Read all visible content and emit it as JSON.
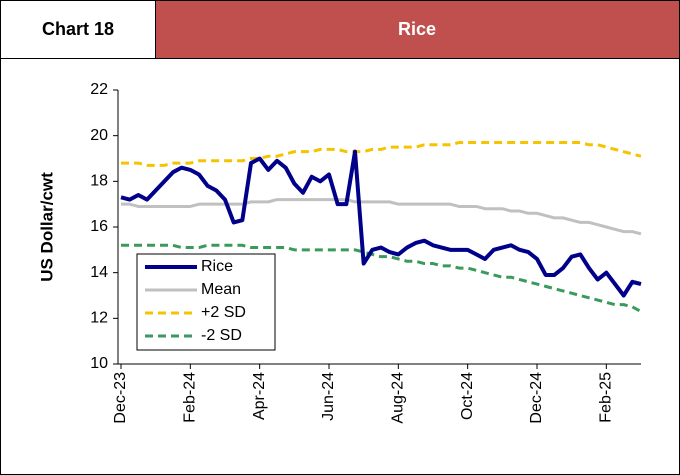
{
  "header": {
    "label": "Chart 18",
    "title": "Rice"
  },
  "chart_data": {
    "type": "line",
    "ylabel": "US Dollar/cwt",
    "categories": [
      "Dec-23",
      null,
      null,
      null,
      null,
      null,
      null,
      null,
      "Feb-24",
      null,
      null,
      null,
      null,
      null,
      null,
      null,
      "Apr-24",
      null,
      null,
      null,
      null,
      null,
      null,
      null,
      "Jun-24",
      null,
      null,
      null,
      null,
      null,
      null,
      null,
      "Aug-24",
      null,
      null,
      null,
      null,
      null,
      null,
      null,
      "Oct-24",
      null,
      null,
      null,
      null,
      null,
      null,
      null,
      "Dec-24",
      null,
      null,
      null,
      null,
      null,
      null,
      null,
      "Feb-25",
      null,
      null,
      null,
      null
    ],
    "ylim": [
      10,
      22
    ],
    "yticks": [
      10,
      12,
      14,
      16,
      18,
      20,
      22
    ],
    "grid": false,
    "legend": "lower left",
    "series": [
      {
        "name": "Rice",
        "color": "#00008b",
        "style": "solid",
        "width": 4,
        "values": [
          17.3,
          17.2,
          17.4,
          17.2,
          17.6,
          18.0,
          18.4,
          18.6,
          18.5,
          18.3,
          17.8,
          17.6,
          17.2,
          16.2,
          16.3,
          18.8,
          19.0,
          18.5,
          18.9,
          18.6,
          17.9,
          17.5,
          18.2,
          18.0,
          18.3,
          17.0,
          17.0,
          19.3,
          14.4,
          15.0,
          15.1,
          14.9,
          14.8,
          15.1,
          15.3,
          15.4,
          15.2,
          15.1,
          15.0,
          15.0,
          15.0,
          14.8,
          14.6,
          15.0,
          15.1,
          15.2,
          15.0,
          14.9,
          14.6,
          13.9,
          13.9,
          14.2,
          14.7,
          14.8,
          14.2,
          13.7,
          14.0,
          13.5,
          13.0,
          13.6,
          13.5
        ]
      },
      {
        "name": "Mean",
        "color": "#c0c0c0",
        "style": "solid",
        "width": 3,
        "values": [
          17.0,
          17.0,
          16.9,
          16.9,
          16.9,
          16.9,
          16.9,
          16.9,
          16.9,
          17.0,
          17.0,
          17.0,
          17.0,
          17.0,
          17.0,
          17.1,
          17.1,
          17.1,
          17.2,
          17.2,
          17.2,
          17.2,
          17.2,
          17.2,
          17.2,
          17.2,
          17.2,
          17.1,
          17.1,
          17.1,
          17.1,
          17.1,
          17.0,
          17.0,
          17.0,
          17.0,
          17.0,
          17.0,
          17.0,
          16.9,
          16.9,
          16.9,
          16.8,
          16.8,
          16.8,
          16.7,
          16.7,
          16.6,
          16.6,
          16.5,
          16.4,
          16.4,
          16.3,
          16.2,
          16.2,
          16.1,
          16.0,
          15.9,
          15.8,
          15.8,
          15.7
        ]
      },
      {
        "name": "+2 SD",
        "color": "#f5c400",
        "style": "dashed",
        "width": 3,
        "values": [
          18.8,
          18.8,
          18.8,
          18.7,
          18.7,
          18.7,
          18.8,
          18.8,
          18.8,
          18.9,
          18.9,
          18.9,
          18.9,
          18.9,
          18.9,
          19.0,
          19.0,
          19.1,
          19.1,
          19.2,
          19.3,
          19.3,
          19.3,
          19.4,
          19.4,
          19.4,
          19.3,
          19.3,
          19.3,
          19.4,
          19.4,
          19.5,
          19.5,
          19.5,
          19.5,
          19.6,
          19.6,
          19.6,
          19.6,
          19.7,
          19.7,
          19.7,
          19.7,
          19.7,
          19.7,
          19.7,
          19.7,
          19.7,
          19.7,
          19.7,
          19.7,
          19.7,
          19.7,
          19.7,
          19.6,
          19.6,
          19.5,
          19.4,
          19.3,
          19.2,
          19.1
        ]
      },
      {
        "name": "-2 SD",
        "color": "#3a9a5b",
        "style": "dashed",
        "width": 3,
        "values": [
          15.2,
          15.2,
          15.2,
          15.2,
          15.2,
          15.2,
          15.2,
          15.1,
          15.1,
          15.1,
          15.2,
          15.2,
          15.2,
          15.2,
          15.2,
          15.1,
          15.1,
          15.1,
          15.1,
          15.1,
          15.0,
          15.0,
          15.0,
          15.0,
          15.0,
          15.0,
          15.0,
          15.0,
          14.9,
          14.8,
          14.7,
          14.7,
          14.6,
          14.5,
          14.5,
          14.4,
          14.4,
          14.3,
          14.3,
          14.2,
          14.2,
          14.1,
          14.0,
          13.9,
          13.8,
          13.8,
          13.7,
          13.6,
          13.5,
          13.4,
          13.3,
          13.2,
          13.1,
          13.0,
          12.9,
          12.8,
          12.7,
          12.6,
          12.6,
          12.5,
          12.3
        ]
      }
    ]
  }
}
